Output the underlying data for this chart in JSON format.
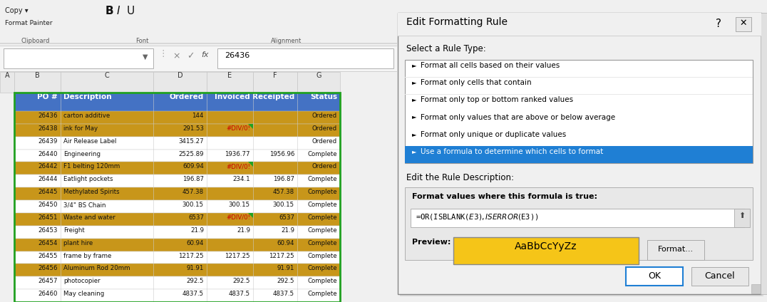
{
  "fig_width": 10.76,
  "fig_height": 4.24,
  "dpi": 100,
  "bg_color": "#f0f0f0",
  "header_bg": "#4472c4",
  "orange_row_bg": "#c8961a",
  "white_row_bg": "#ffffff",
  "columns": [
    "PO #",
    "Description",
    "Ordered",
    "Invoiced",
    "Receipted",
    "Status"
  ],
  "rows": [
    {
      "po": "26436",
      "desc": "carton additive",
      "ordered": "144",
      "invoiced": "",
      "receipted": "",
      "status": "Ordered",
      "orange": true
    },
    {
      "po": "26438",
      "desc": "ink for May",
      "ordered": "291.53",
      "invoiced": "#DIV/0!",
      "receipted": "",
      "status": "Ordered",
      "orange": true
    },
    {
      "po": "26439",
      "desc": "Air Release Label",
      "ordered": "3415.27",
      "invoiced": "",
      "receipted": "",
      "status": "Ordered",
      "orange": false
    },
    {
      "po": "26440",
      "desc": "Engineering",
      "ordered": "2525.89",
      "invoiced": "1936.77",
      "receipted": "1956.96",
      "status": "Complete",
      "orange": false
    },
    {
      "po": "26442",
      "desc": "F1 belting 120mm",
      "ordered": "609.94",
      "invoiced": "#DIV/0!",
      "receipted": "",
      "status": "Ordered",
      "orange": true
    },
    {
      "po": "26444",
      "desc": "Eatlight pockets",
      "ordered": "196.87",
      "invoiced": "234.1",
      "receipted": "196.87",
      "status": "Complete",
      "orange": false
    },
    {
      "po": "26445",
      "desc": "Methylated Spirits",
      "ordered": "457.38",
      "invoiced": "",
      "receipted": "457.38",
      "status": "Complete",
      "orange": true
    },
    {
      "po": "26450",
      "desc": "3/4\" BS Chain",
      "ordered": "300.15",
      "invoiced": "300.15",
      "receipted": "300.15",
      "status": "Complete",
      "orange": false
    },
    {
      "po": "26451",
      "desc": "Waste and water",
      "ordered": "6537",
      "invoiced": "#DIV/0!",
      "receipted": "6537",
      "status": "Complete",
      "orange": true
    },
    {
      "po": "26453",
      "desc": "Freight",
      "ordered": "21.9",
      "invoiced": "21.9",
      "receipted": "21.9",
      "status": "Complete",
      "orange": false
    },
    {
      "po": "26454",
      "desc": "plant hire",
      "ordered": "60.94",
      "invoiced": "",
      "receipted": "60.94",
      "status": "Complete",
      "orange": true
    },
    {
      "po": "26455",
      "desc": "frame by frame",
      "ordered": "1217.25",
      "invoiced": "1217.25",
      "receipted": "1217.25",
      "status": "Complete",
      "orange": false
    },
    {
      "po": "26456",
      "desc": "Aluminum Rod 20mm",
      "ordered": "91.91",
      "invoiced": "",
      "receipted": "91.91",
      "status": "Complete",
      "orange": true
    },
    {
      "po": "26457",
      "desc": "photocopier",
      "ordered": "292.5",
      "invoiced": "292.5",
      "receipted": "292.5",
      "status": "Complete",
      "orange": false
    },
    {
      "po": "26460",
      "desc": "May cleaning",
      "ordered": "4837.5",
      "invoiced": "4837.5",
      "receipted": "4837.5",
      "status": "Complete",
      "orange": false
    }
  ],
  "dialog": {
    "title": "Edit Formatting Rule",
    "rule_type_label": "Select a Rule Type:",
    "rule_types": [
      "Format all cells based on their values",
      "Format only cells that contain",
      "Format only top or bottom ranked values",
      "Format only values that are above or below average",
      "Format only unique or duplicate values",
      "Use a formula to determine which cells to format"
    ],
    "selected_rule_idx": 5,
    "selected_rule_bg": "#1f7fd4",
    "selected_rule_fg": "#ffffff",
    "desc_label": "Edit the Rule Description:",
    "formula_label": "Format values where this formula is true:",
    "formula": "=OR(ISBLANK($E3),ISERROR($E3))",
    "preview_label": "Preview:",
    "preview_text": "AaBbCcYyZz",
    "preview_bg": "#f5c518",
    "format_btn": "Format...",
    "ok_btn": "OK",
    "cancel_btn": "Cancel"
  }
}
